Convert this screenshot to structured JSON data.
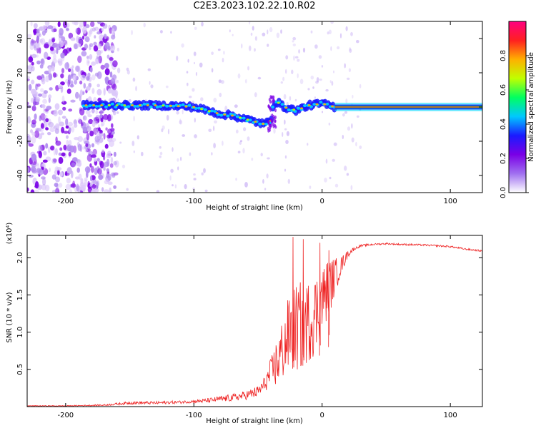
{
  "title": "C2E3.2023.102.22.10.R02",
  "chart_data": [
    {
      "type": "heatmap",
      "xlabel": "Height of straight line (km)",
      "ylabel": "Frequency (Hz)",
      "xlim": [
        -230,
        125
      ],
      "ylim": [
        -50,
        50
      ],
      "xticks": [
        -200,
        -100,
        0,
        100
      ],
      "yticks": [
        -40,
        -20,
        0,
        20,
        40
      ],
      "colorbar": {
        "label": "Normalized spectral amplitude",
        "range": [
          0,
          1
        ],
        "ticks": [
          "0.0",
          "0.2",
          "0.4",
          "0.6",
          "0.8"
        ],
        "colors": [
          "#ffffff",
          "#a070f0",
          "#7a00e6",
          "#1a1aff",
          "#00c8ff",
          "#00ff60",
          "#c0ff00",
          "#ffb000",
          "#ff2020",
          "#ff0080"
        ]
      },
      "ridge": {
        "x": [
          -185,
          -170,
          -150,
          -130,
          -110,
          -100,
          -90,
          -80,
          -70,
          -60,
          -55,
          -50,
          -45,
          -40,
          -38,
          -35,
          -30,
          -25,
          -20,
          -10,
          0,
          5,
          10,
          125
        ],
        "y": [
          1,
          1,
          1,
          1,
          0.5,
          0,
          -2,
          -4,
          -5,
          -7,
          -8,
          -9,
          -10,
          -8,
          2,
          3,
          0,
          -1,
          -2,
          1,
          2,
          1,
          0,
          0
        ]
      },
      "noise_extent_km": [
        -230,
        -160
      ]
    },
    {
      "type": "line",
      "xlabel": "Height of straight line (km)",
      "ylabel": "SNR (10 * v/v)",
      "y_multiplier": "(x10⁴)",
      "xlim": [
        -230,
        125
      ],
      "ylim": [
        0,
        2.3
      ],
      "xticks": [
        -200,
        -100,
        0,
        100
      ],
      "yticks": [
        0.5,
        1.0,
        1.5,
        2.0
      ],
      "ytick_labels": [
        "0.5",
        "1.0",
        "1.5",
        "2.0"
      ],
      "color": "#ee2222",
      "series": [
        {
          "x": [
            -230,
            -200,
            -170,
            -150,
            -130,
            -110,
            -100,
            -90,
            -80,
            -70,
            -60,
            -50,
            -45,
            -40,
            -35,
            -30,
            -25,
            -20,
            -15,
            -10,
            -5,
            0,
            5,
            10,
            15,
            20,
            25,
            30,
            40,
            50,
            60,
            80,
            100,
            110,
            125
          ],
          "values": [
            0.01,
            0.01,
            0.02,
            0.05,
            0.05,
            0.06,
            0.07,
            0.08,
            0.1,
            0.12,
            0.15,
            0.2,
            0.3,
            0.45,
            0.6,
            0.8,
            1.0,
            1.05,
            1.1,
            1.15,
            1.25,
            1.45,
            1.6,
            1.75,
            1.9,
            2.05,
            2.12,
            2.16,
            2.18,
            2.19,
            2.18,
            2.17,
            2.15,
            2.12,
            2.09
          ],
          "noise_amplitude": [
            0.005,
            0.005,
            0.01,
            0.02,
            0.02,
            0.02,
            0.02,
            0.03,
            0.04,
            0.05,
            0.06,
            0.08,
            0.1,
            0.2,
            0.35,
            0.45,
            0.55,
            0.6,
            0.6,
            0.55,
            0.55,
            0.45,
            0.4,
            0.25,
            0.12,
            0.05,
            0.02,
            0.015,
            0.012,
            0.012,
            0.012,
            0.012,
            0.012,
            0.012,
            0.012
          ],
          "spikes": [
            {
              "x": -23,
              "y": 2.28
            },
            {
              "x": -15,
              "y": 2.25
            },
            {
              "x": -2,
              "y": 2.2
            },
            {
              "x": 5,
              "y": 2.1
            }
          ]
        }
      ]
    }
  ]
}
